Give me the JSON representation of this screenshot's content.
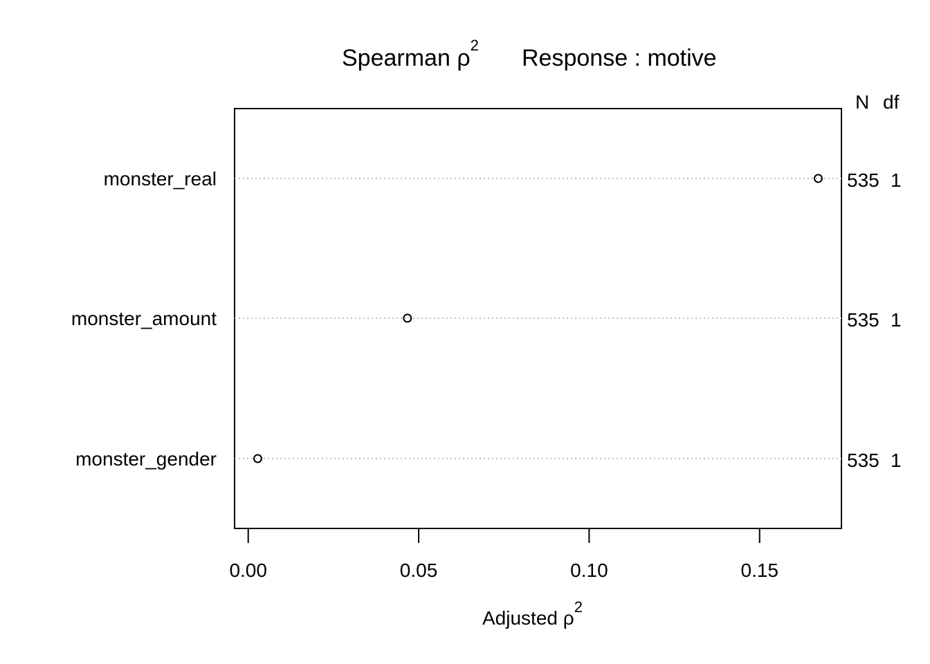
{
  "chart_data": {
    "type": "scatter",
    "title": {
      "lead": "Spearman ",
      "rho": "ρ",
      "power": "2",
      "tail": "Response : motive"
    },
    "xlabel": {
      "lead": "Adjusted ",
      "rho": "ρ",
      "power": "2"
    },
    "xlim": [
      -0.004,
      0.174
    ],
    "xticks": [
      0.0,
      0.05,
      0.1,
      0.15
    ],
    "xtick_labels": [
      "0.00",
      "0.05",
      "0.10",
      "0.15"
    ],
    "right_header": {
      "n": "N",
      "df": "df"
    },
    "categories": [
      "monster_real",
      "monster_amount",
      "monster_gender"
    ],
    "values": [
      0.1672,
      0.0467,
      0.0028
    ],
    "n": [
      "535",
      "535",
      "535"
    ],
    "df": [
      "1",
      "1",
      "1"
    ],
    "grid": "dotted horizontal guide per row",
    "colors": {
      "points": "#000000",
      "guides": "#bebebe",
      "frame": "#000000"
    }
  }
}
